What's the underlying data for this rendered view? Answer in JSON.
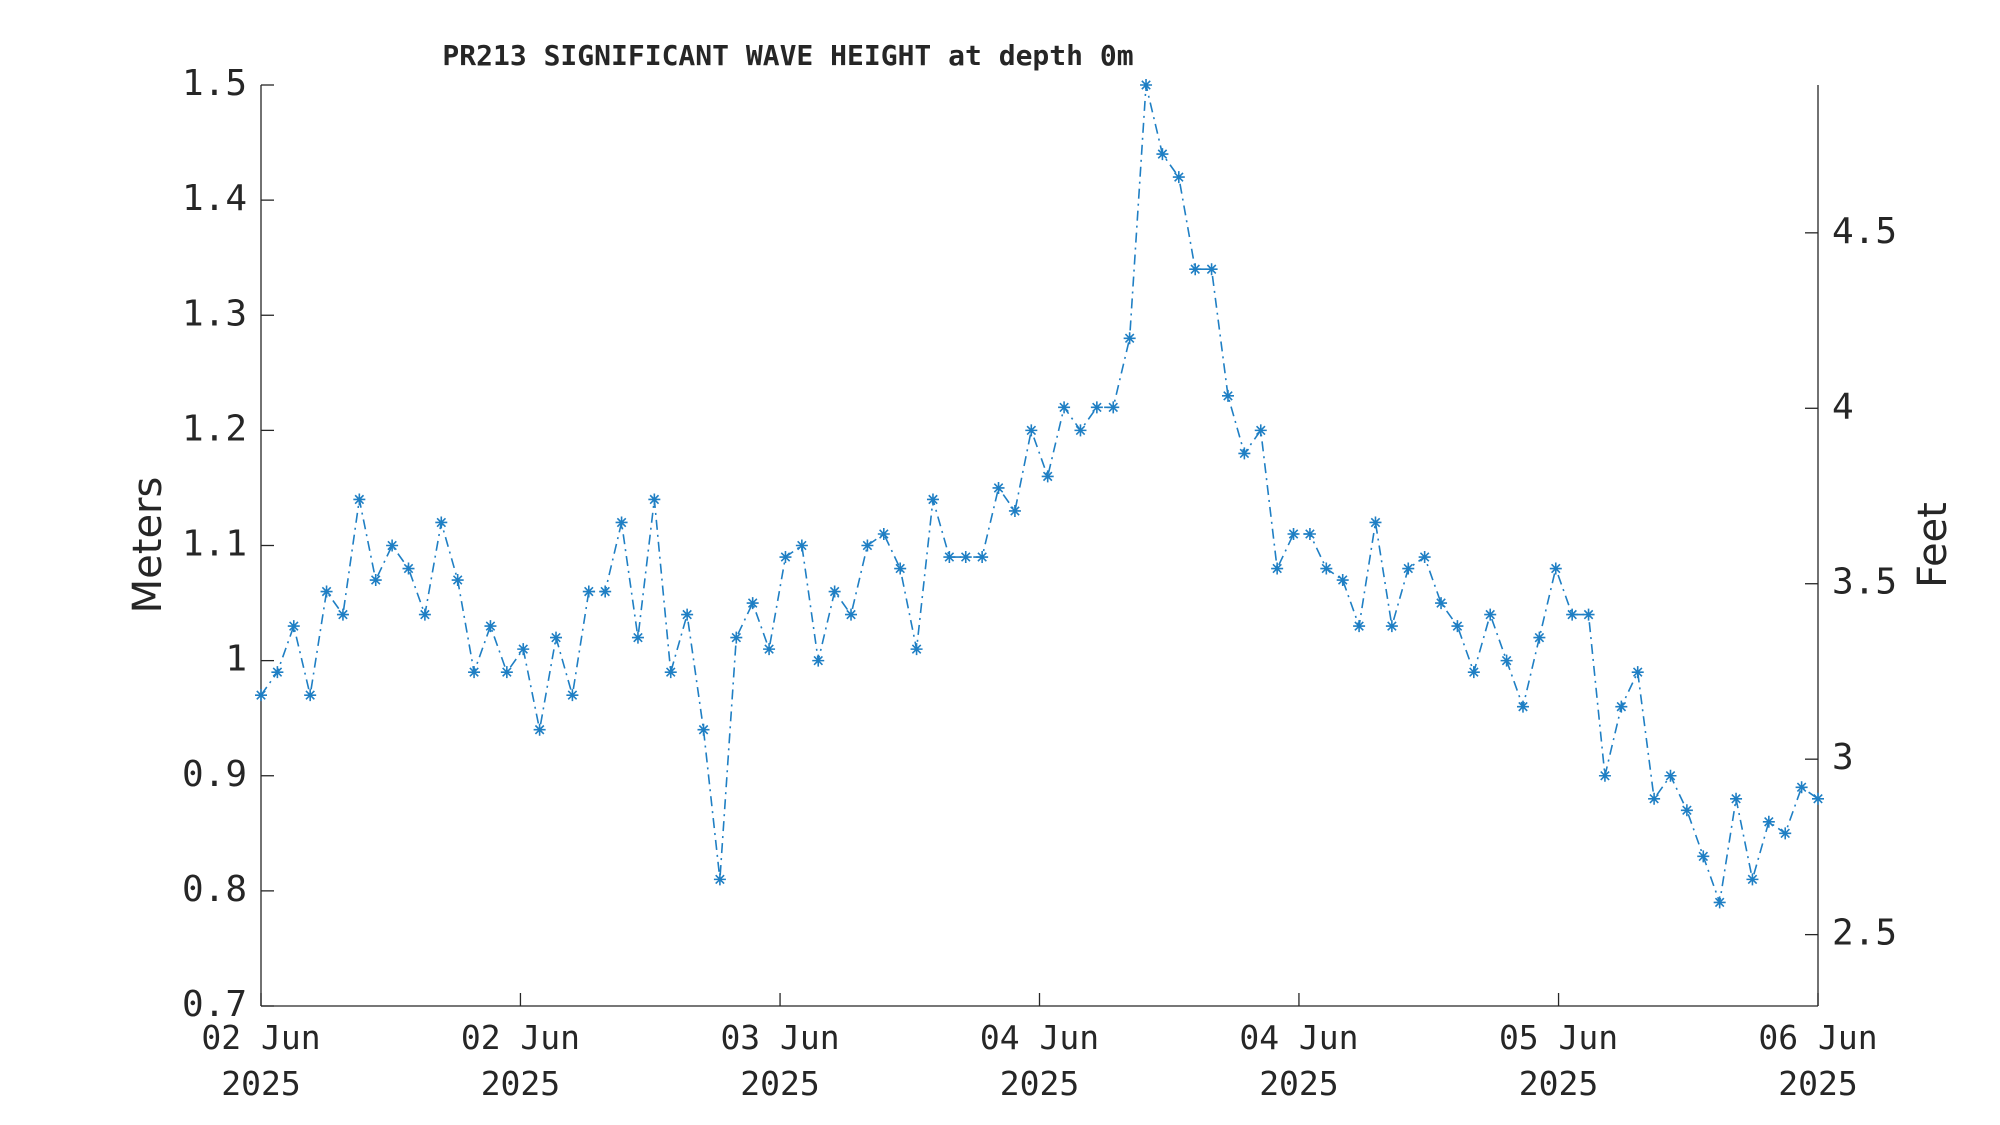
{
  "chart_data": {
    "type": "line",
    "title": "PR213 SIGNIFICANT WAVE HEIGHT at depth 0m",
    "ylabel": "Meters",
    "y2label": "Feet",
    "xlim": [
      0,
      95
    ],
    "xticks": [
      {
        "value": 0,
        "label": "02 Jun\n2025"
      },
      {
        "value": 15.83,
        "label": "02 Jun\n2025"
      },
      {
        "value": 31.67,
        "label": "03 Jun\n2025"
      },
      {
        "value": 47.5,
        "label": "04 Jun\n2025"
      },
      {
        "value": 63.33,
        "label": "04 Jun\n2025"
      },
      {
        "value": 79.17,
        "label": "05 Jun\n2025"
      },
      {
        "value": 95,
        "label": "06 Jun\n2025"
      }
    ],
    "ylim": [
      0.7,
      1.5
    ],
    "yticks": [
      0.7,
      0.8,
      0.9,
      1,
      1.1,
      1.2,
      1.3,
      1.4,
      1.5
    ],
    "y2lim": [
      2.2966,
      4.9213
    ],
    "y2ticks": [
      2.5,
      3,
      3.5,
      4,
      4.5
    ],
    "series": [
      {
        "color": "#1f7fc4",
        "values": [
          0.97,
          0.99,
          1.03,
          0.97,
          1.06,
          1.04,
          1.14,
          1.07,
          1.1,
          1.08,
          1.04,
          1.12,
          1.07,
          0.99,
          1.03,
          0.99,
          1.01,
          0.94,
          1.02,
          0.97,
          1.06,
          1.06,
          1.12,
          1.02,
          1.14,
          0.99,
          1.04,
          0.94,
          0.81,
          1.02,
          1.05,
          1.01,
          1.09,
          1.1,
          1.0,
          1.06,
          1.04,
          1.1,
          1.11,
          1.08,
          1.01,
          1.14,
          1.09,
          1.09,
          1.09,
          1.15,
          1.13,
          1.2,
          1.16,
          1.22,
          1.2,
          1.22,
          1.22,
          1.28,
          1.5,
          1.44,
          1.42,
          1.34,
          1.34,
          1.23,
          1.18,
          1.2,
          1.08,
          1.11,
          1.11,
          1.08,
          1.07,
          1.03,
          1.12,
          1.03,
          1.08,
          1.09,
          1.05,
          1.03,
          0.99,
          1.04,
          1.0,
          0.96,
          1.02,
          1.08,
          1.04,
          1.04,
          0.9,
          0.96,
          0.99,
          0.88,
          0.9,
          0.87,
          0.83,
          0.79,
          0.88,
          0.81,
          0.86,
          0.85,
          0.89,
          0.88
        ]
      }
    ]
  }
}
